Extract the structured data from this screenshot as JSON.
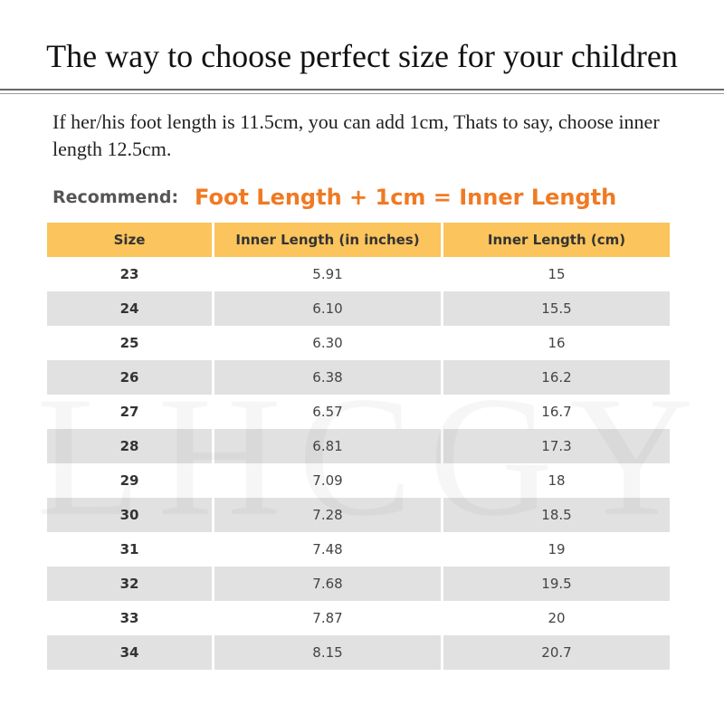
{
  "title": "The way to choose perfect size for your children",
  "intro": "If her/his foot length is 11.5cm, you can add 1cm, Thats to say, choose inner length 12.5cm.",
  "recommend": {
    "label": "Recommend:",
    "formula": "Foot Length + 1cm = Inner Length"
  },
  "watermark": "LHCGY",
  "colors": {
    "header_bg": "#fbc45c",
    "formula": "#f07a23",
    "stripe": "#e1e1e1"
  },
  "table": {
    "headers": [
      "Size",
      "Inner Length (in inches)",
      "Inner Length (cm)"
    ],
    "rows": [
      [
        "23",
        "5.91",
        "15"
      ],
      [
        "24",
        "6.10",
        "15.5"
      ],
      [
        "25",
        "6.30",
        "16"
      ],
      [
        "26",
        "6.38",
        "16.2"
      ],
      [
        "27",
        "6.57",
        "16.7"
      ],
      [
        "28",
        "6.81",
        "17.3"
      ],
      [
        "29",
        "7.09",
        "18"
      ],
      [
        "30",
        "7.28",
        "18.5"
      ],
      [
        "31",
        "7.48",
        "19"
      ],
      [
        "32",
        "7.68",
        "19.5"
      ],
      [
        "33",
        "7.87",
        "20"
      ],
      [
        "34",
        "8.15",
        "20.7"
      ]
    ]
  }
}
